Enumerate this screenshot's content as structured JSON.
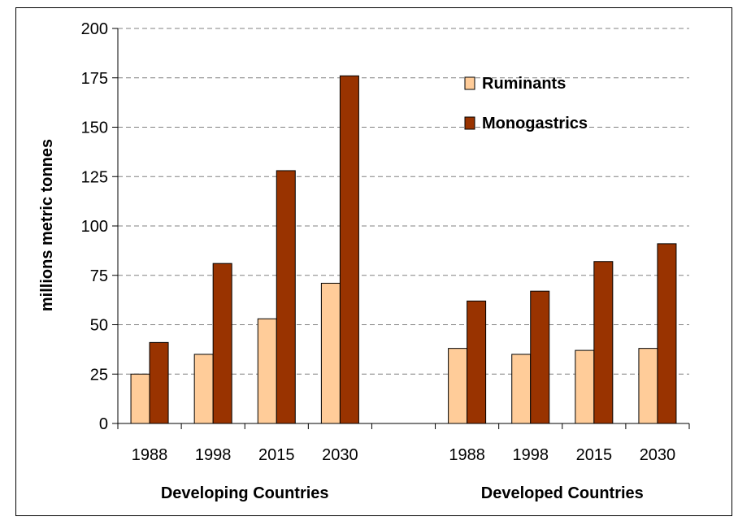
{
  "header_fragment": "",
  "chart_data": {
    "type": "bar",
    "ylabel": "millions metric tonnes",
    "ylim": [
      0,
      200
    ],
    "yticks": [
      0,
      25,
      50,
      75,
      100,
      125,
      150,
      175,
      200
    ],
    "grid": true,
    "legend_position": "top-right",
    "groups": [
      {
        "label": "Developing Countries",
        "categories": [
          "1988",
          "1998",
          "2015",
          "2030"
        ],
        "series": [
          {
            "name": "Ruminants",
            "values": [
              25,
              35,
              53,
              71
            ]
          },
          {
            "name": "Monogastrics",
            "values": [
              41,
              81,
              128,
              176
            ]
          }
        ]
      },
      {
        "label": "Developed Countries",
        "categories": [
          "1988",
          "1998",
          "2015",
          "2030"
        ],
        "series": [
          {
            "name": "Ruminants",
            "values": [
              38,
              35,
              37,
              38
            ]
          },
          {
            "name": "Monogastrics",
            "values": [
              62,
              67,
              82,
              91
            ]
          }
        ]
      }
    ],
    "legend": [
      {
        "name": "Ruminants",
        "color": "#FFCC99"
      },
      {
        "name": "Monogastrics",
        "color": "#993300"
      }
    ]
  }
}
